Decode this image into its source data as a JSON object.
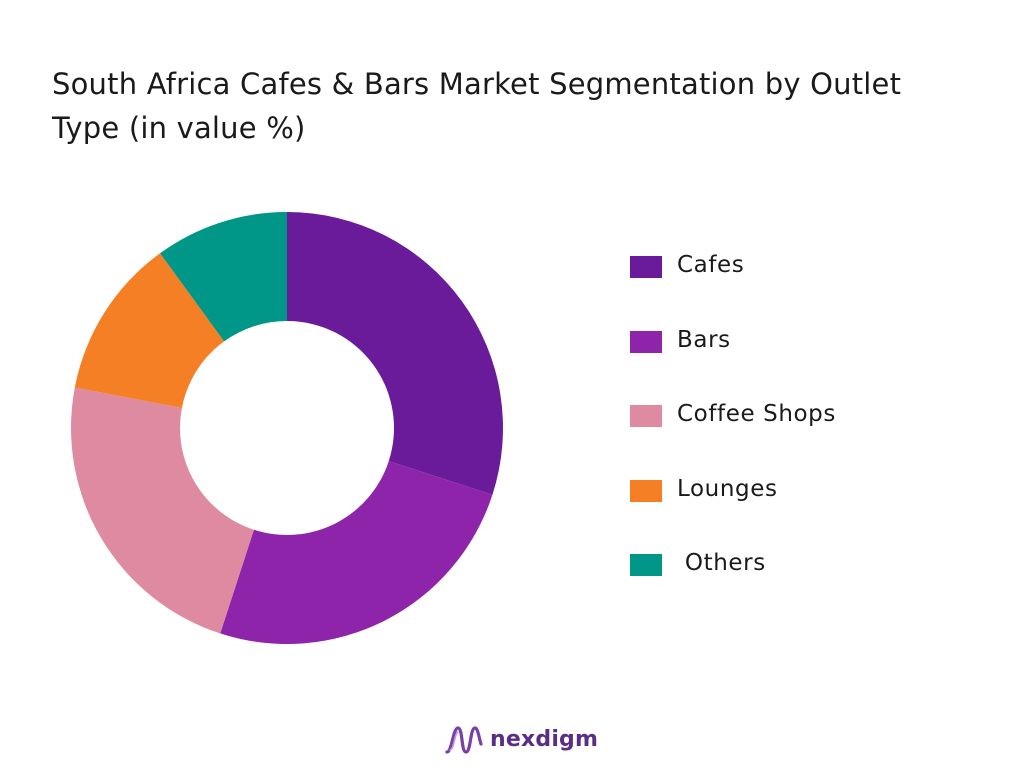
{
  "chart_data": {
    "type": "pie",
    "style": "donut",
    "title": "South Africa Cafes & Bars Market Segmentation by Outlet Type (in value %)",
    "legend_position": "right",
    "categories": [
      "Cafes",
      "Bars",
      "Coffee Shops",
      "Lounges",
      " Others"
    ],
    "values": [
      30,
      25,
      23,
      12,
      10
    ],
    "colors": [
      "#6a1b9a",
      "#8e24aa",
      "#de8aa0",
      "#f57f25",
      "#009688"
    ]
  },
  "brand": {
    "name": "nexdigm",
    "color": "#5a2d86"
  }
}
